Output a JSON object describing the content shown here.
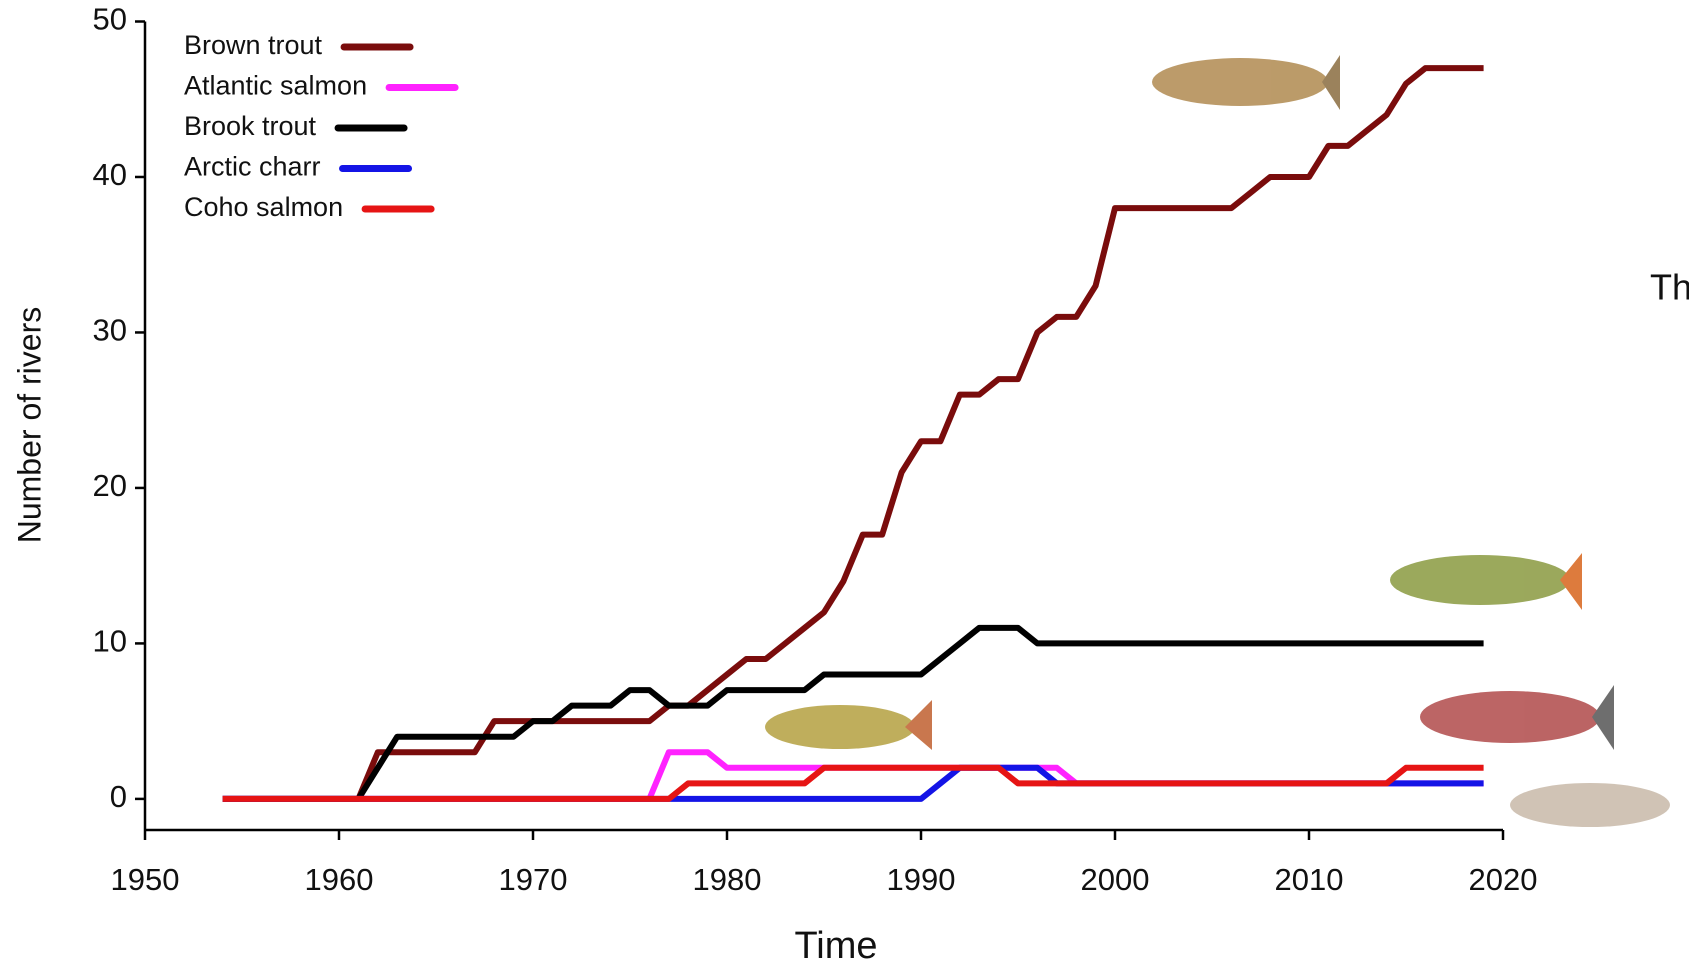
{
  "chart_data": {
    "type": "line",
    "y_label": "Number of rivers",
    "x_label": "Time",
    "side_text": "Th",
    "x": [
      1954,
      1955,
      1956,
      1957,
      1958,
      1959,
      1960,
      1961,
      1962,
      1963,
      1964,
      1965,
      1966,
      1967,
      1968,
      1969,
      1970,
      1971,
      1972,
      1973,
      1974,
      1975,
      1976,
      1977,
      1978,
      1979,
      1980,
      1981,
      1982,
      1983,
      1984,
      1985,
      1986,
      1987,
      1988,
      1989,
      1990,
      1991,
      1992,
      1993,
      1994,
      1995,
      1996,
      1997,
      1998,
      1999,
      2000,
      2001,
      2002,
      2003,
      2004,
      2005,
      2006,
      2007,
      2008,
      2009,
      2010,
      2011,
      2012,
      2013,
      2014,
      2015,
      2016,
      2017,
      2018,
      2019
    ],
    "series": [
      {
        "name": "Brown trout",
        "color": "#7a0c0c",
        "values": [
          0,
          0,
          0,
          0,
          0,
          0,
          0,
          0,
          3,
          3,
          3,
          3,
          3,
          3,
          5,
          5,
          5,
          5,
          5,
          5,
          5,
          5,
          5,
          6,
          6,
          7,
          8,
          9,
          9,
          10,
          11,
          12,
          14,
          17,
          17,
          21,
          23,
          23,
          26,
          26,
          27,
          27,
          30,
          31,
          31,
          33,
          38,
          38,
          38,
          38,
          38,
          38,
          38,
          39,
          40,
          40,
          40,
          42,
          42,
          43,
          44,
          46,
          47,
          47,
          47,
          47
        ]
      },
      {
        "name": "Atlantic salmon",
        "color": "#ff22ff",
        "values": [
          0,
          0,
          0,
          0,
          0,
          0,
          0,
          0,
          0,
          0,
          0,
          0,
          0,
          0,
          0,
          0,
          0,
          0,
          0,
          0,
          0,
          0,
          0,
          3,
          3,
          3,
          2,
          2,
          2,
          2,
          2,
          2,
          2,
          2,
          2,
          2,
          2,
          2,
          2,
          2,
          2,
          2,
          2,
          2,
          1,
          1,
          1,
          1,
          1,
          1,
          1,
          1,
          1,
          1,
          1,
          1,
          1,
          1,
          1,
          1,
          1,
          1,
          1,
          1,
          1,
          1
        ]
      },
      {
        "name": "Brook trout",
        "color": "#000000",
        "values": [
          0,
          0,
          0,
          0,
          0,
          0,
          0,
          0,
          2,
          4,
          4,
          4,
          4,
          4,
          4,
          4,
          5,
          5,
          6,
          6,
          6,
          7,
          7,
          6,
          6,
          6,
          7,
          7,
          7,
          7,
          7,
          8,
          8,
          8,
          8,
          8,
          8,
          9,
          10,
          11,
          11,
          11,
          10,
          10,
          10,
          10,
          10,
          10,
          10,
          10,
          10,
          10,
          10,
          10,
          10,
          10,
          10,
          10,
          10,
          10,
          10,
          10,
          10,
          10,
          10,
          10
        ]
      },
      {
        "name": "Arctic charr",
        "color": "#1414e6",
        "values": [
          0,
          0,
          0,
          0,
          0,
          0,
          0,
          0,
          0,
          0,
          0,
          0,
          0,
          0,
          0,
          0,
          0,
          0,
          0,
          0,
          0,
          0,
          0,
          0,
          0,
          0,
          0,
          0,
          0,
          0,
          0,
          0,
          0,
          0,
          0,
          0,
          0,
          1,
          2,
          2,
          2,
          2,
          2,
          1,
          1,
          1,
          1,
          1,
          1,
          1,
          1,
          1,
          1,
          1,
          1,
          1,
          1,
          1,
          1,
          1,
          1,
          1,
          1,
          1,
          1,
          1
        ]
      },
      {
        "name": "Coho salmon",
        "color": "#e61414",
        "values": [
          0,
          0,
          0,
          0,
          0,
          0,
          0,
          0,
          0,
          0,
          0,
          0,
          0,
          0,
          0,
          0,
          0,
          0,
          0,
          0,
          0,
          0,
          0,
          0,
          1,
          1,
          1,
          1,
          1,
          1,
          1,
          2,
          2,
          2,
          2,
          2,
          2,
          2,
          2,
          2,
          2,
          1,
          1,
          1,
          1,
          1,
          1,
          1,
          1,
          1,
          1,
          1,
          1,
          1,
          1,
          1,
          1,
          1,
          1,
          1,
          1,
          2,
          2,
          2,
          2,
          2
        ]
      }
    ],
    "xlim": [
      1950,
      2020
    ],
    "xticks": [
      1950,
      1960,
      1970,
      1980,
      1990,
      2000,
      2010,
      2020
    ],
    "ylim": [
      -2,
      50
    ],
    "yticks": [
      0,
      10,
      20,
      30,
      40,
      50
    ],
    "legend": "upper left"
  }
}
